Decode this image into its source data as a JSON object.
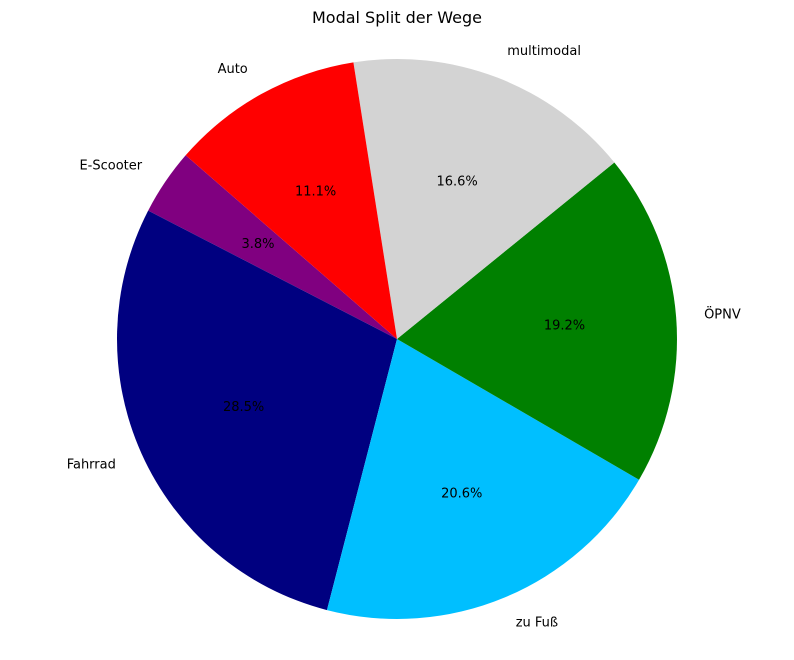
{
  "chart_data": {
    "type": "pie",
    "title": "Modal Split der Wege",
    "start_angle_deg": 139,
    "direction": "counterclockwise",
    "slices": [
      {
        "label": "E-Scooter",
        "value": 3.8,
        "pct_label": "3.8%",
        "color": "#800080"
      },
      {
        "label": "Fahrrad",
        "value": 28.5,
        "pct_label": "28.5%",
        "color": "#000080"
      },
      {
        "label": "zu Fuß",
        "value": 20.6,
        "pct_label": "20.6%",
        "color": "#00BFFF"
      },
      {
        "label": "ÖPNV",
        "value": 19.2,
        "pct_label": "19.2%",
        "color": "#008000"
      },
      {
        "label": "multimodal",
        "value": 16.6,
        "pct_label": "16.6%",
        "color": "#D3D3D3"
      },
      {
        "label": "Auto",
        "value": 11.1,
        "pct_label": "11.1%",
        "color": "#FF0000"
      }
    ]
  }
}
